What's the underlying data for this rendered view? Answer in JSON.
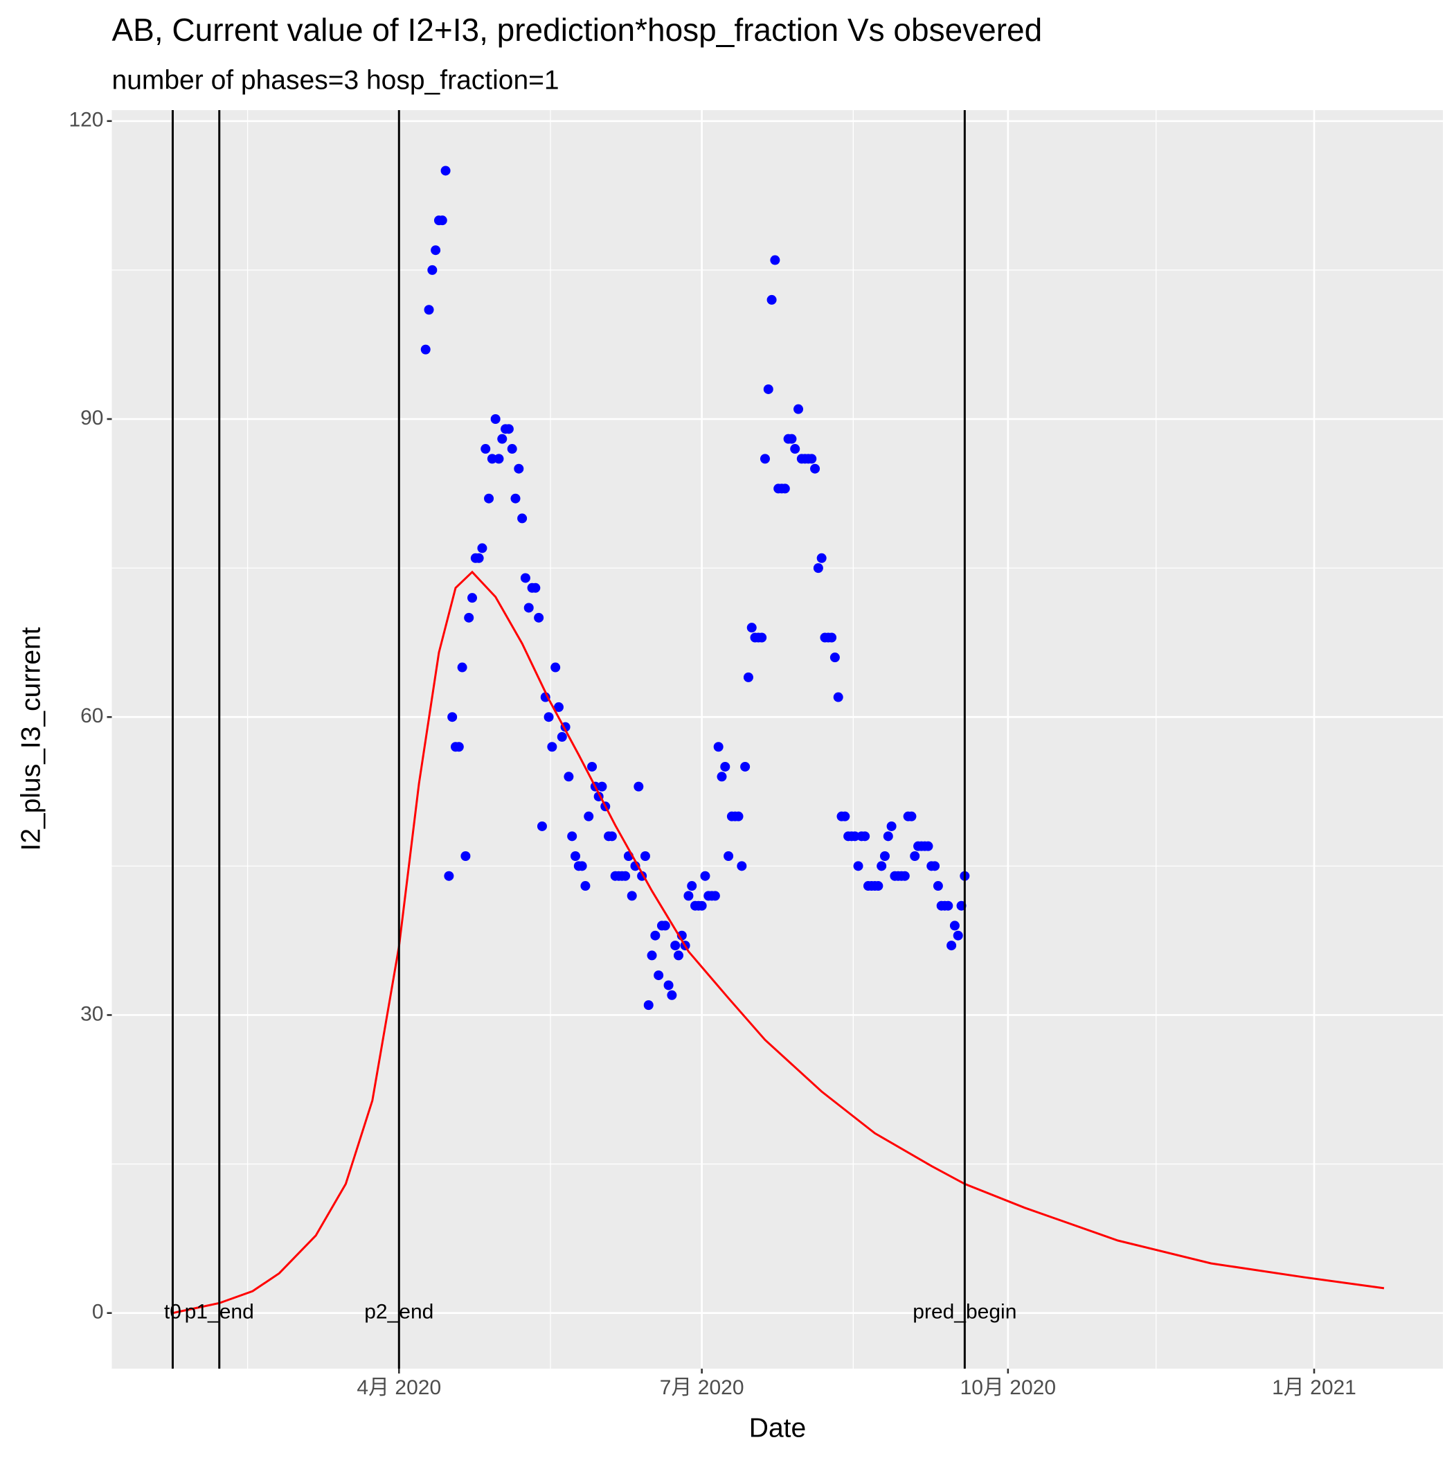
{
  "chart_data": {
    "type": "scatter",
    "title": "AB, Current value of I2+I3, prediction*hosp_fraction Vs obsevered",
    "subtitle": "number of phases=3   hosp_fraction=1",
    "x_label": "Date",
    "y_label": "I2_plus_I3_current",
    "xlim": [
      4.7,
      404.7
    ],
    "ylim": [
      -5.6,
      121.1
    ],
    "xticks": [
      {
        "value": 91,
        "label": "4月 2020"
      },
      {
        "value": 182,
        "label": "7月 2020"
      },
      {
        "value": 274,
        "label": "10月 2020"
      },
      {
        "value": 366,
        "label": "1月 2021"
      }
    ],
    "yticks": [
      0,
      30,
      60,
      90,
      120
    ],
    "grid": true,
    "background": "#ebebeb",
    "vlines": [
      {
        "x": 23,
        "label": "t0"
      },
      {
        "x": 37,
        "label": "p1_end"
      },
      {
        "x": 91,
        "label": "p2_end"
      },
      {
        "x": 261,
        "label": "pred_begin"
      }
    ],
    "vline_color": "#000000",
    "series": [
      {
        "type": "scatter",
        "color": "#0000ff",
        "x": [
          99,
          100,
          101,
          102,
          103,
          104,
          105,
          106,
          107,
          108,
          109,
          110,
          111,
          112,
          113,
          114,
          115,
          116,
          117,
          118,
          119,
          120,
          121,
          122,
          123,
          124,
          125,
          126,
          127,
          128,
          129,
          130,
          131,
          132,
          133,
          134,
          135,
          136,
          137,
          138,
          139,
          140,
          141,
          142,
          143,
          144,
          145,
          146,
          147,
          148,
          149,
          150,
          151,
          152,
          153,
          154,
          155,
          156,
          157,
          158,
          159,
          160,
          161,
          162,
          163,
          164,
          165,
          166,
          167,
          168,
          169,
          170,
          171,
          172,
          173,
          174,
          175,
          176,
          177,
          178,
          179,
          180,
          181,
          182,
          183,
          184,
          185,
          186,
          187,
          188,
          189,
          190,
          191,
          192,
          193,
          194,
          195,
          196,
          197,
          198,
          199,
          200,
          201,
          202,
          203,
          204,
          205,
          206,
          207,
          208,
          209,
          210,
          211,
          212,
          213,
          214,
          215,
          216,
          217,
          218,
          219,
          220,
          221,
          222,
          223,
          224,
          225,
          226,
          227,
          228,
          229,
          230,
          231,
          232,
          233,
          234,
          235,
          236,
          237,
          238,
          239,
          240,
          241,
          242,
          243,
          244,
          245,
          246,
          247,
          248,
          249,
          250,
          251,
          252,
          253,
          254,
          255,
          256,
          257,
          258,
          259,
          260,
          261
        ],
        "values": [
          97,
          101,
          105,
          107,
          110,
          110,
          115,
          44,
          60,
          57,
          57,
          65,
          46,
          70,
          72,
          76,
          76,
          77,
          87,
          82,
          86,
          90,
          86,
          88,
          89,
          89,
          87,
          82,
          85,
          80,
          74,
          71,
          73,
          73,
          70,
          49,
          62,
          60,
          57,
          65,
          61,
          58,
          59,
          54,
          48,
          46,
          45,
          45,
          43,
          50,
          55,
          53,
          52,
          53,
          51,
          48,
          48,
          44,
          44,
          44,
          44,
          46,
          42,
          45,
          53,
          44,
          46,
          31,
          36,
          38,
          34,
          39,
          39,
          33,
          32,
          37,
          36,
          38,
          37,
          42,
          43,
          41,
          41,
          41,
          44,
          42,
          42,
          42,
          57,
          54,
          55,
          46,
          50,
          50,
          50,
          45,
          55,
          64,
          69,
          68,
          68,
          68,
          86,
          93,
          102,
          106,
          83,
          83,
          83,
          88,
          88,
          87,
          91,
          86,
          86,
          86,
          86,
          85,
          75,
          76,
          68,
          68,
          68,
          66,
          62,
          50,
          50,
          48,
          48,
          48,
          45,
          48,
          48,
          43,
          43,
          43,
          43,
          45,
          46,
          48,
          49,
          44,
          44,
          44,
          44,
          50,
          50,
          46,
          47,
          47,
          47,
          47,
          45,
          45,
          43,
          41,
          41,
          41,
          37,
          39,
          38,
          41,
          44
        ]
      },
      {
        "type": "line",
        "color": "#ff0000",
        "x": [
          23,
          37,
          47,
          55,
          66,
          75,
          83,
          91,
          97,
          103,
          108,
          113,
          120,
          128,
          136,
          145,
          156,
          167,
          178,
          190,
          201,
          218,
          234,
          251,
          261,
          279,
          307,
          335,
          363,
          387
        ],
        "values": [
          0,
          1,
          2.2,
          4,
          7.8,
          13,
          21.4,
          36.9,
          53.3,
          66.5,
          73,
          74.6,
          72.1,
          67.4,
          61.8,
          56.2,
          49.1,
          42.5,
          36.4,
          31.7,
          27.5,
          22.3,
          18.1,
          14.8,
          13,
          10.6,
          7.3,
          5,
          3.6,
          2.5
        ]
      }
    ]
  }
}
